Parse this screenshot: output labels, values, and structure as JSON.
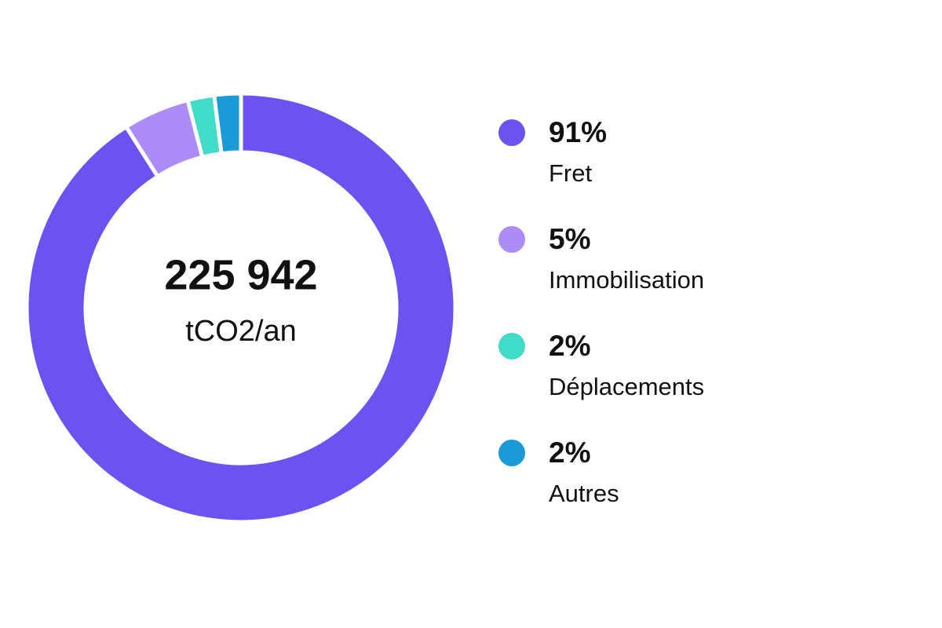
{
  "chart_data": {
    "type": "donut",
    "center_title": "225 942",
    "center_subtitle": "tCO2/an",
    "categories": [
      "Fret",
      "Immobilisation",
      "Déplacements",
      "Autres"
    ],
    "values": [
      91,
      5,
      2,
      2
    ],
    "value_labels": [
      "91%",
      "5%",
      "2%",
      "2%"
    ],
    "colors": [
      "#6c52f0",
      "#ac8cf8",
      "#40dcc8",
      "#1a9ad6"
    ]
  }
}
